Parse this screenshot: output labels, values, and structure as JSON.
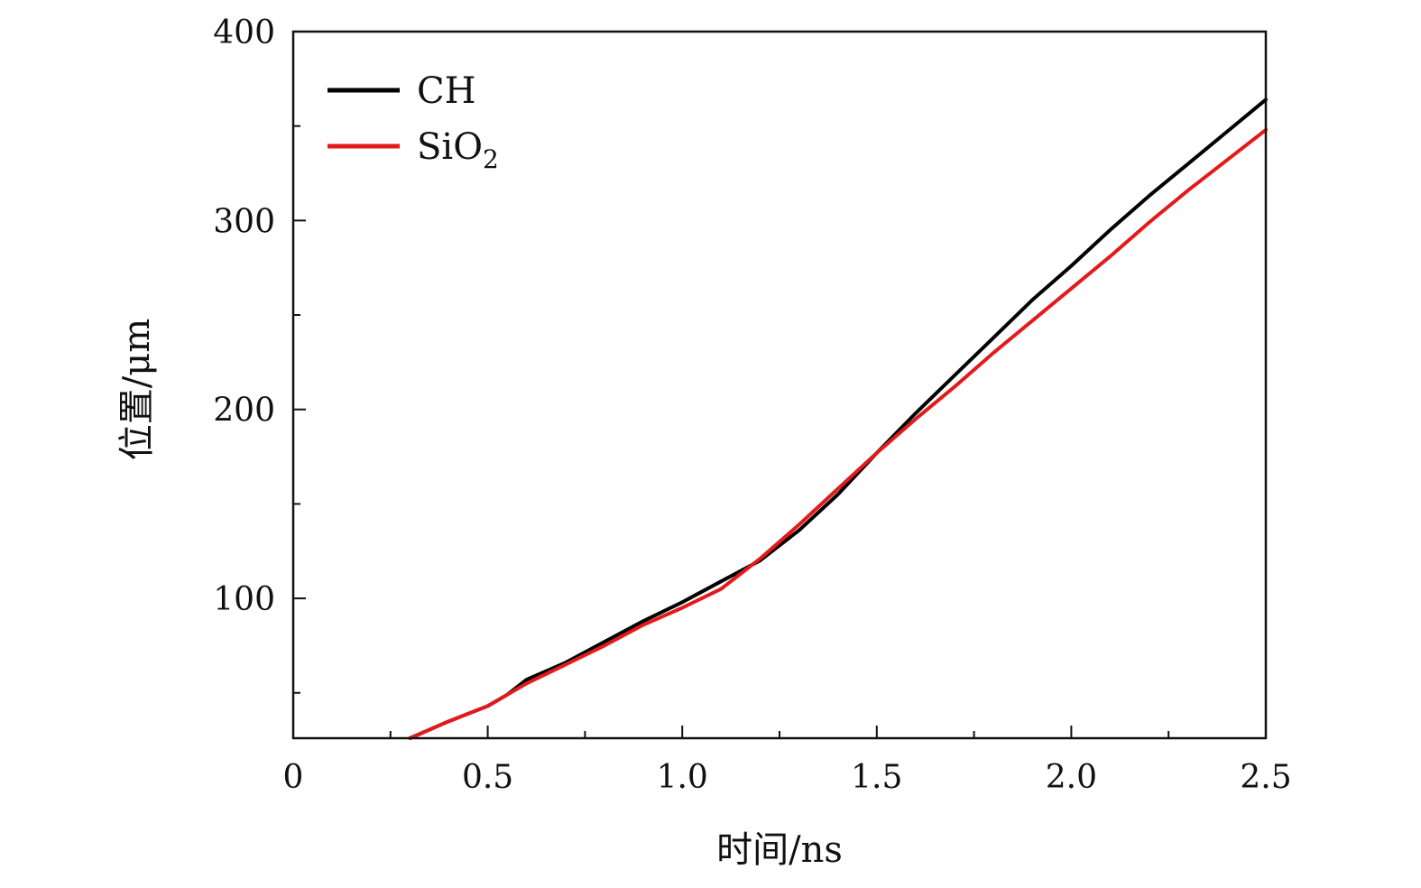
{
  "chart_data": {
    "type": "line",
    "xlabel": "时间/ns",
    "ylabel": "位置/μm",
    "xlim": [
      0,
      2.5
    ],
    "ylim": [
      26,
      400
    ],
    "x_ticks": [
      {
        "value": 0,
        "label": "0"
      },
      {
        "value": 0.5,
        "label": "0.5"
      },
      {
        "value": 1.0,
        "label": "1.0"
      },
      {
        "value": 1.5,
        "label": "1.5"
      },
      {
        "value": 2.0,
        "label": "2.0"
      },
      {
        "value": 2.5,
        "label": "2.5"
      }
    ],
    "x_minor_ticks": [
      0.25,
      0.75,
      1.25,
      1.75,
      2.25
    ],
    "y_ticks": [
      {
        "value": 100,
        "label": "100"
      },
      {
        "value": 200,
        "label": "200"
      },
      {
        "value": 300,
        "label": "300"
      },
      {
        "value": 400,
        "label": "400"
      }
    ],
    "y_minor_ticks": [
      50,
      150,
      250,
      350
    ],
    "grid": false,
    "legend_position": "top-left",
    "series": [
      {
        "name": "CH",
        "name_main": "CH",
        "name_sub": "",
        "color": "#000000",
        "x": [
          0.3,
          0.4,
          0.5,
          0.55,
          0.6,
          0.7,
          0.8,
          0.9,
          1.0,
          1.1,
          1.2,
          1.3,
          1.4,
          1.5,
          1.6,
          1.7,
          1.8,
          1.9,
          2.0,
          2.1,
          2.2,
          2.3,
          2.4,
          2.5
        ],
        "y": [
          26,
          35,
          43,
          49,
          57,
          66,
          77,
          88,
          98,
          109,
          120,
          136,
          155,
          177,
          198,
          218,
          238,
          258,
          276,
          295,
          313,
          330,
          347,
          364
        ]
      },
      {
        "name": "SiO2",
        "name_main": "SiO",
        "name_sub": "2",
        "color": "#e31a1c",
        "x": [
          0.3,
          0.4,
          0.5,
          0.55,
          0.6,
          0.7,
          0.8,
          0.9,
          1.0,
          1.1,
          1.2,
          1.3,
          1.4,
          1.5,
          1.6,
          1.7,
          1.8,
          1.9,
          2.0,
          2.1,
          2.2,
          2.3,
          2.4,
          2.5
        ],
        "y": [
          26,
          35,
          43,
          49,
          55,
          65,
          75,
          86,
          95,
          105,
          121,
          139,
          158,
          177,
          195,
          212,
          230,
          247,
          264,
          281,
          299,
          316,
          332,
          348
        ]
      }
    ]
  }
}
